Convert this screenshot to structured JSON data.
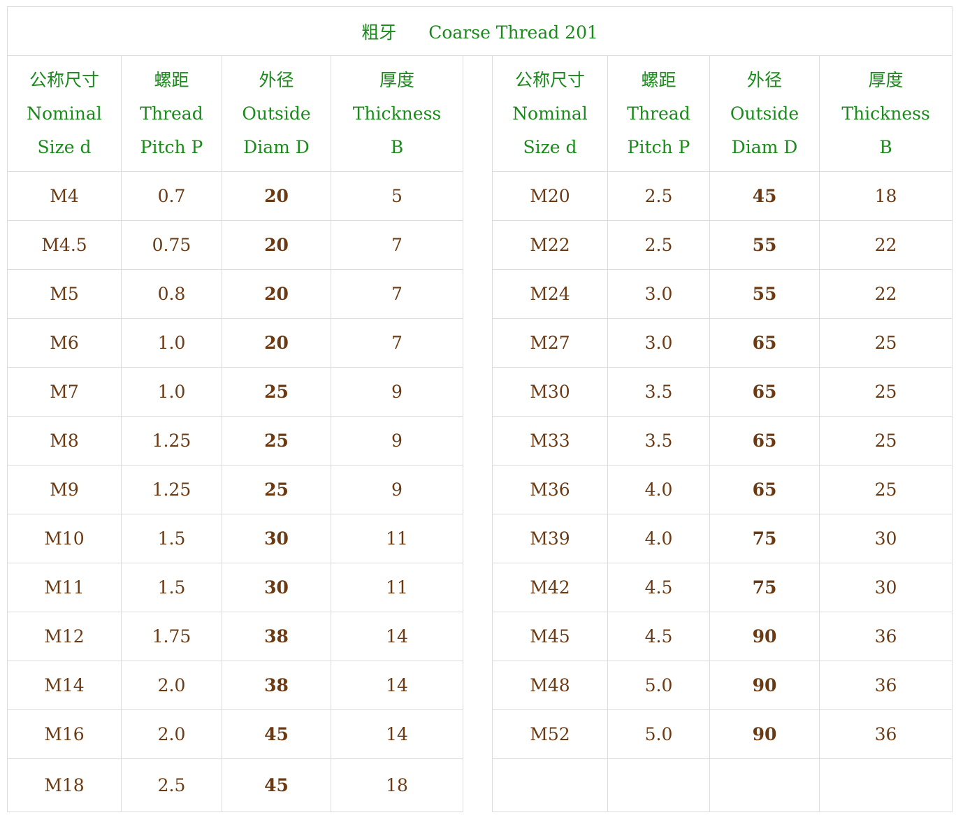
{
  "title": {
    "cn": "粗牙",
    "en": "Coarse Thread 201"
  },
  "headers": [
    {
      "cn": "公称尺寸",
      "en1": "Nominal",
      "en2": "Size d"
    },
    {
      "cn": "螺距",
      "en1": "Thread",
      "en2": "Pitch P"
    },
    {
      "cn": "外径",
      "en1": "Outside",
      "en2": "Diam D"
    },
    {
      "cn": "厚度",
      "en1": "Thickness",
      "en2": "B"
    }
  ],
  "colors": {
    "header": "#1a8a1a",
    "body": "#6b3a12",
    "magenta": "#d6158c",
    "red": "#d60a19",
    "blue": "#1c47a8",
    "border": "#dcdcdc"
  },
  "left_rows": [
    {
      "size": "M4",
      "pitch": "0.7",
      "od": "20",
      "od_color": "magenta",
      "b": "5"
    },
    {
      "size": "M4.5",
      "pitch": "0.75",
      "od": "20",
      "od_color": "magenta",
      "b": "7"
    },
    {
      "size": "M5",
      "pitch": "0.8",
      "od": "20",
      "od_color": "magenta",
      "b": "7"
    },
    {
      "size": "M6",
      "pitch": "1.0",
      "od": "20",
      "od_color": "magenta",
      "b": "7"
    },
    {
      "size": "M7",
      "pitch": "1.0",
      "od": "25",
      "od_color": "red",
      "b": "9"
    },
    {
      "size": "M8",
      "pitch": "1.25",
      "od": "25",
      "od_color": "red",
      "b": "9"
    },
    {
      "size": "M9",
      "pitch": "1.25",
      "od": "25",
      "od_color": "red",
      "b": "9"
    },
    {
      "size": "M10",
      "pitch": "1.5",
      "od": "30",
      "od_color": "blue",
      "b": "11"
    },
    {
      "size": "M11",
      "pitch": "1.5",
      "od": "30",
      "od_color": "blue",
      "b": "11"
    },
    {
      "size": "M12",
      "pitch": "1.75",
      "od": "38",
      "od_color": "blue",
      "b": "14"
    },
    {
      "size": "M14",
      "pitch": "2.0",
      "od": "38",
      "od_color": "blue",
      "b": "14"
    },
    {
      "size": "M16",
      "pitch": "2.0",
      "od": "45",
      "od_color": "magenta",
      "b": "14"
    },
    {
      "size": "M18",
      "pitch": "2.5",
      "od": "45",
      "od_color": "magenta",
      "b": "18"
    }
  ],
  "right_rows": [
    {
      "size": "M20",
      "pitch": "2.5",
      "od": "45",
      "od_color": "magenta",
      "b": "18"
    },
    {
      "size": "M22",
      "pitch": "2.5",
      "od": "55",
      "od_color": "red",
      "b": "22"
    },
    {
      "size": "M24",
      "pitch": "3.0",
      "od": "55",
      "od_color": "red",
      "b": "22"
    },
    {
      "size": "M27",
      "pitch": "3.0",
      "od": "65",
      "od_color": "blue",
      "b": "25"
    },
    {
      "size": "M30",
      "pitch": "3.5",
      "od": "65",
      "od_color": "blue",
      "b": "25"
    },
    {
      "size": "M33",
      "pitch": "3.5",
      "od": "65",
      "od_color": "blue",
      "b": "25"
    },
    {
      "size": "M36",
      "pitch": "4.0",
      "od": "65",
      "od_color": "blue",
      "b": "25"
    },
    {
      "size": "M39",
      "pitch": "4.0",
      "od": "75",
      "od_color": "magenta",
      "b": "30"
    },
    {
      "size": "M42",
      "pitch": "4.5",
      "od": "75",
      "od_color": "magenta",
      "b": "30"
    },
    {
      "size": "M45",
      "pitch": "4.5",
      "od": "90",
      "od_color": "red",
      "b": "36"
    },
    {
      "size": "M48",
      "pitch": "5.0",
      "od": "90",
      "od_color": "red",
      "b": "36"
    },
    {
      "size": "M52",
      "pitch": "5.0",
      "od": "90",
      "od_color": "red",
      "b": "36"
    },
    {
      "size": "",
      "pitch": "",
      "od": "",
      "od_color": "",
      "b": ""
    }
  ]
}
